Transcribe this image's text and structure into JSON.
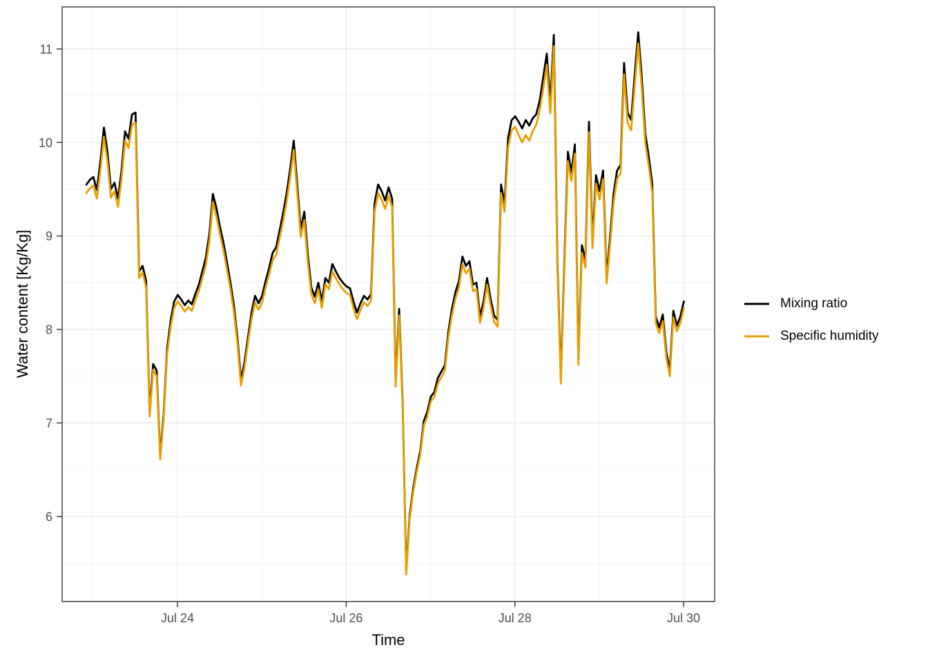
{
  "figure": {
    "x_axis_title": "Time",
    "y_axis_title": "Water content [Kg/Kg]"
  },
  "chart_data": {
    "type": "line",
    "title": "",
    "xlabel": "Time",
    "ylabel": "Water content [Kg/Kg]",
    "x_unit": "day of July (fractional), hourly sampling",
    "x_start": 22.92,
    "x_step": 0.0416667,
    "xlim": [
      22.633,
      30.368
    ],
    "ylim": [
      5.09,
      11.45
    ],
    "grid": true,
    "legend_position": "right",
    "x_ticks": [
      {
        "value": 24,
        "label": "Jul 24"
      },
      {
        "value": 26,
        "label": "Jul 26"
      },
      {
        "value": 28,
        "label": "Jul 28"
      },
      {
        "value": 30,
        "label": "Jul 30"
      }
    ],
    "x_minor_ticks": [
      23,
      25,
      27,
      29
    ],
    "y_ticks": [
      6,
      7,
      8,
      9,
      10,
      11
    ],
    "y_minor_ticks": [
      5.5,
      6.5,
      7.5,
      8.5,
      9.5,
      10.5
    ],
    "series": [
      {
        "name": "Mixing ratio",
        "color": "#000000",
        "values": [
          9.55,
          9.6,
          9.63,
          9.49,
          9.8,
          10.16,
          9.9,
          9.5,
          9.57,
          9.4,
          9.7,
          10.12,
          10.04,
          10.3,
          10.32,
          8.62,
          8.68,
          8.52,
          7.12,
          7.63,
          7.56,
          6.65,
          7.1,
          7.8,
          8.1,
          8.3,
          8.37,
          8.32,
          8.26,
          8.31,
          8.27,
          8.38,
          8.48,
          8.62,
          8.77,
          9.02,
          9.45,
          9.3,
          9.1,
          8.93,
          8.72,
          8.5,
          8.25,
          7.9,
          7.46,
          7.65,
          7.92,
          8.18,
          8.36,
          8.28,
          8.36,
          8.52,
          8.66,
          8.82,
          8.88,
          9.06,
          9.25,
          9.46,
          9.72,
          10.02,
          9.55,
          9.07,
          9.26,
          8.8,
          8.45,
          8.35,
          8.5,
          8.3,
          8.55,
          8.5,
          8.7,
          8.62,
          8.55,
          8.5,
          8.46,
          8.44,
          8.3,
          8.18,
          8.28,
          8.36,
          8.32,
          8.38,
          9.35,
          9.55,
          9.48,
          9.38,
          9.52,
          9.4,
          7.45,
          8.22,
          7.2,
          5.42,
          6.02,
          6.3,
          6.52,
          6.7,
          7.02,
          7.12,
          7.28,
          7.33,
          7.48,
          7.55,
          7.62,
          7.98,
          8.22,
          8.4,
          8.52,
          8.78,
          8.68,
          8.73,
          8.48,
          8.5,
          8.14,
          8.3,
          8.55,
          8.33,
          8.15,
          8.1,
          9.55,
          9.35,
          10.05,
          10.24,
          10.28,
          10.22,
          10.15,
          10.24,
          10.18,
          10.26,
          10.3,
          10.45,
          10.7,
          10.95,
          10.42,
          11.15,
          8.75,
          7.48,
          8.72,
          9.9,
          9.68,
          9.98,
          7.68,
          8.9,
          8.74,
          10.22,
          8.95,
          9.65,
          9.48,
          9.7,
          8.56,
          8.98,
          9.45,
          9.7,
          9.76,
          10.85,
          10.32,
          10.24,
          10.72,
          11.18,
          10.7,
          10.1,
          9.85,
          9.56,
          8.14,
          8.02,
          8.16,
          7.76,
          7.56,
          8.2,
          8.04,
          8.14,
          8.3
        ]
      },
      {
        "name": "Specific humidity",
        "color": "#E69F00",
        "values": [
          9.46,
          9.51,
          9.54,
          9.4,
          9.7,
          10.06,
          9.8,
          9.41,
          9.48,
          9.31,
          9.61,
          10.02,
          9.94,
          10.19,
          10.21,
          8.55,
          8.61,
          8.45,
          7.07,
          7.57,
          7.5,
          6.61,
          7.05,
          7.74,
          8.03,
          8.23,
          8.3,
          8.25,
          8.19,
          8.24,
          8.2,
          8.31,
          8.41,
          8.55,
          8.69,
          8.94,
          9.36,
          9.21,
          9.02,
          8.85,
          8.64,
          8.43,
          8.18,
          7.84,
          7.4,
          7.59,
          7.86,
          8.11,
          8.29,
          8.21,
          8.29,
          8.45,
          8.59,
          8.74,
          8.8,
          8.98,
          9.16,
          9.37,
          9.63,
          9.92,
          9.46,
          8.99,
          9.17,
          8.72,
          8.38,
          8.28,
          8.43,
          8.23,
          8.48,
          8.43,
          8.62,
          8.55,
          8.48,
          8.43,
          8.39,
          8.37,
          8.23,
          8.11,
          8.21,
          8.29,
          8.25,
          8.31,
          9.26,
          9.46,
          9.39,
          9.29,
          9.43,
          9.31,
          7.39,
          8.15,
          7.15,
          5.38,
          5.98,
          6.26,
          6.48,
          6.66,
          6.97,
          7.07,
          7.23,
          7.28,
          7.42,
          7.49,
          7.56,
          7.92,
          8.15,
          8.33,
          8.45,
          8.7,
          8.6,
          8.65,
          8.41,
          8.43,
          8.07,
          8.23,
          8.48,
          8.26,
          8.08,
          8.03,
          9.46,
          9.26,
          9.95,
          10.13,
          10.17,
          10.08,
          10.0,
          10.08,
          10.02,
          10.12,
          10.19,
          10.34,
          10.58,
          10.83,
          10.31,
          11.03,
          8.67,
          7.42,
          8.64,
          9.8,
          9.59,
          9.88,
          7.62,
          8.82,
          8.66,
          10.11,
          8.87,
          9.56,
          9.39,
          9.61,
          8.49,
          8.9,
          9.36,
          9.61,
          9.67,
          10.73,
          10.21,
          10.13,
          10.6,
          11.06,
          10.58,
          10.0,
          9.75,
          9.47,
          8.07,
          7.96,
          8.09,
          7.7,
          7.5,
          8.13,
          7.98,
          8.07,
          8.23
        ]
      }
    ]
  },
  "style": {
    "background": "#ffffff",
    "grid_major_color": "#e8e8e8",
    "grid_minor_color": "#f2f2f2",
    "axis_color": "#333333",
    "tick_label_color": "#4d4d4d"
  }
}
